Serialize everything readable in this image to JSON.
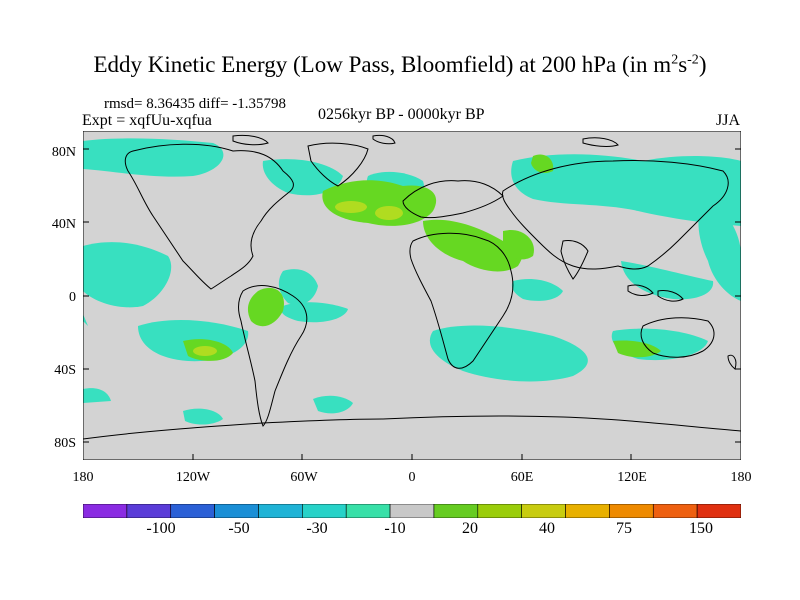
{
  "header": {
    "title": "Eddy Kinetic Energy (Low Pass, Bloomfield) at 200 hPa (in m",
    "title_sup1": "2",
    "title_mid": "s",
    "title_sup2": "-2",
    "title_end": ")",
    "stats": "rmsd= 8.36435  diff= -1.35798",
    "expt": "Expt = xqfUu-xqfua",
    "period": "0256kyr BP - 0000kyr BP",
    "season": "JJA"
  },
  "axes": {
    "lat_labels": [
      "80N",
      "40N",
      "0",
      "40S",
      "80S"
    ],
    "lon_labels": [
      "180",
      "120W",
      "60W",
      "0",
      "60E",
      "120E",
      "180"
    ]
  },
  "colorbar": {
    "labels": [
      "-100",
      "-50",
      "-30",
      "-10",
      "20",
      "40",
      "75",
      "150"
    ],
    "colors": [
      "#8a2be2",
      "#5a3cd8",
      "#2b60d6",
      "#1b8fd6",
      "#1fb3d6",
      "#27d2c8",
      "#38e0a8",
      "#c8c8c8",
      "#66cc22",
      "#9acd0a",
      "#c8cc10",
      "#e8b000",
      "#ee8a00",
      "#ee6010",
      "#e03010"
    ]
  },
  "map": {
    "background": "#d3d3d3",
    "cyan": "#38e0c0",
    "green": "#66d822",
    "yellowgreen": "#b0dc20"
  }
}
